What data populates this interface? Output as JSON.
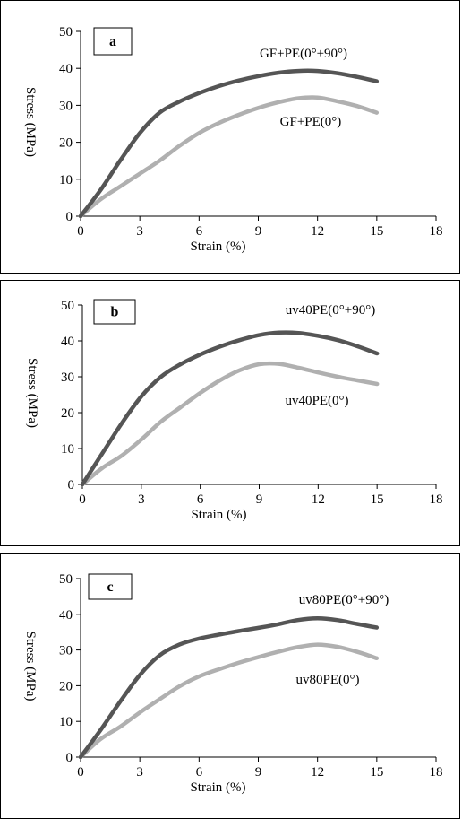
{
  "chart_data": [
    {
      "type": "line",
      "panel_label": "a",
      "xlabel": "Strain (%)",
      "ylabel": "Stress (MPa)",
      "xlim": [
        0,
        18
      ],
      "ylim": [
        0,
        50
      ],
      "xticks": [
        0,
        3,
        6,
        9,
        12,
        15,
        18
      ],
      "yticks": [
        0,
        10,
        20,
        30,
        40,
        50
      ],
      "grid": false,
      "series": [
        {
          "name": "GF+PE(0°+90°)",
          "color": "#555555",
          "x": [
            0,
            1,
            2,
            3,
            4,
            5,
            6,
            7,
            8,
            9,
            10,
            11,
            12,
            13,
            14,
            15
          ],
          "y": [
            0,
            7,
            15,
            22.5,
            28,
            31,
            33.3,
            35.2,
            36.7,
            37.9,
            38.8,
            39.3,
            39.3,
            38.7,
            37.7,
            36.5
          ]
        },
        {
          "name": "GF+PE(0°)",
          "color": "#b0b0b0",
          "x": [
            0,
            1,
            2,
            3,
            4,
            5,
            6,
            7,
            8,
            9,
            10,
            11,
            12,
            13,
            14,
            15
          ],
          "y": [
            0,
            4.5,
            8,
            11.5,
            15,
            19,
            22.5,
            25.2,
            27.4,
            29.3,
            30.8,
            31.9,
            32.1,
            31.1,
            29.8,
            28
          ]
        }
      ]
    },
    {
      "type": "line",
      "panel_label": "b",
      "xlabel": "Strain (%)",
      "ylabel": "Stress (MPa)",
      "xlim": [
        0,
        18
      ],
      "ylim": [
        0,
        50
      ],
      "xticks": [
        0,
        3,
        6,
        9,
        12,
        15,
        18
      ],
      "yticks": [
        0,
        10,
        20,
        30,
        40,
        50
      ],
      "grid": false,
      "series": [
        {
          "name": "uv40PE(0°+90°)",
          "color": "#555555",
          "x": [
            0,
            1,
            2,
            3,
            4,
            5,
            6,
            7,
            8,
            9,
            10,
            11,
            12,
            13,
            14,
            15
          ],
          "y": [
            0,
            8.5,
            17,
            24.5,
            30,
            33.5,
            36.2,
            38.4,
            40.2,
            41.6,
            42.3,
            42.2,
            41.4,
            40.2,
            38.5,
            36.5
          ]
        },
        {
          "name": "uv40PE(0°)",
          "color": "#b0b0b0",
          "x": [
            0,
            1,
            2,
            3,
            4,
            5,
            6,
            7,
            8,
            9,
            10,
            11,
            12,
            13,
            14,
            15
          ],
          "y": [
            0,
            4.5,
            8,
            12.5,
            17.5,
            21.5,
            25.5,
            29,
            31.8,
            33.5,
            33.6,
            32.5,
            31.2,
            30,
            29,
            28
          ]
        }
      ]
    },
    {
      "type": "line",
      "panel_label": "c",
      "xlabel": "Strain (%)",
      "ylabel": "Stress (MPa)",
      "xlim": [
        0,
        18
      ],
      "ylim": [
        0,
        50
      ],
      "xticks": [
        0,
        3,
        6,
        9,
        12,
        15,
        18
      ],
      "yticks": [
        0,
        10,
        20,
        30,
        40,
        50
      ],
      "grid": false,
      "series": [
        {
          "name": "uv80PE(0°+90°)",
          "color": "#555555",
          "x": [
            0,
            1,
            2,
            3,
            4,
            5,
            6,
            7,
            8,
            9,
            10,
            11,
            12,
            13,
            14,
            15
          ],
          "y": [
            0,
            7.5,
            15.5,
            23,
            28.5,
            31.5,
            33.2,
            34.3,
            35.3,
            36.2,
            37.2,
            38.4,
            38.9,
            38.4,
            37.3,
            36.3
          ]
        },
        {
          "name": "uv80PE(0°)",
          "color": "#b0b0b0",
          "x": [
            0,
            1,
            2,
            3,
            4,
            5,
            6,
            7,
            8,
            9,
            10,
            11,
            12,
            13,
            14,
            15
          ],
          "y": [
            0,
            5,
            8.5,
            12.5,
            16.2,
            19.8,
            22.6,
            24.6,
            26.4,
            28,
            29.5,
            30.8,
            31.5,
            30.9,
            29.5,
            27.7
          ]
        }
      ]
    }
  ]
}
